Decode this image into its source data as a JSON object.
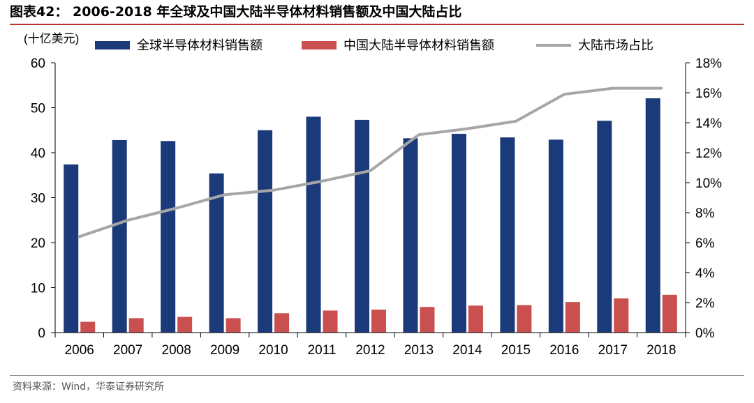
{
  "figure": {
    "title": "图表42： 2006-2018 年全球及中国大陆半导体材料销售额及中国大陆占比",
    "source": "资料来源：Wind，华泰证券研究所"
  },
  "colors": {
    "global_bar": "#1b3a7a",
    "china_bar": "#c9504e",
    "share_line": "#a6a6a6",
    "title_rule": "#b8342f"
  },
  "chart_data": {
    "type": "bar",
    "title": "",
    "unit_label": "(十亿美元)",
    "categories": [
      "2006",
      "2007",
      "2008",
      "2009",
      "2010",
      "2011",
      "2012",
      "2013",
      "2014",
      "2015",
      "2016",
      "2017",
      "2018"
    ],
    "series": [
      {
        "name": "全球半导体材料销售额",
        "kind": "bar",
        "axis": "left",
        "values": [
          37.4,
          42.8,
          42.6,
          35.4,
          45.0,
          48.0,
          47.3,
          43.2,
          44.2,
          43.4,
          42.9,
          47.1,
          52.1
        ]
      },
      {
        "name": "中国大陆半导体材料销售额",
        "kind": "bar",
        "axis": "left",
        "values": [
          2.4,
          3.2,
          3.5,
          3.2,
          4.3,
          4.9,
          5.1,
          5.7,
          6.0,
          6.1,
          6.8,
          7.6,
          8.4
        ]
      },
      {
        "name": "大陆市场占比",
        "kind": "line",
        "axis": "right",
        "values": [
          6.4,
          7.5,
          8.3,
          9.2,
          9.5,
          10.1,
          10.8,
          13.2,
          13.6,
          14.1,
          15.9,
          16.3,
          16.3
        ]
      }
    ],
    "ylim": [
      0,
      60
    ],
    "yticks": [
      0,
      10,
      20,
      30,
      40,
      50,
      60
    ],
    "y2lim": [
      0,
      18
    ],
    "y2ticks": [
      "0%",
      "2%",
      "4%",
      "6%",
      "8%",
      "10%",
      "12%",
      "14%",
      "16%",
      "18%"
    ],
    "y2tick_values": [
      0,
      2,
      4,
      6,
      8,
      10,
      12,
      14,
      16,
      18
    ],
    "legend_position": "top",
    "grid": false
  }
}
